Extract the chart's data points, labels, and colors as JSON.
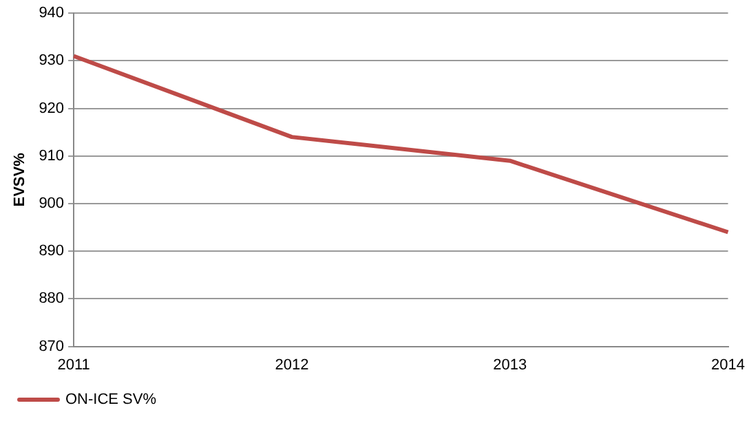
{
  "chart_data": {
    "type": "line",
    "ylabel": "EVSV%",
    "categories": [
      "2011",
      "2012",
      "2013",
      "2014"
    ],
    "series": [
      {
        "name": "ON-ICE SV%",
        "color": "#be4b48",
        "values": [
          931,
          914,
          909,
          894
        ]
      }
    ],
    "ylim": [
      870,
      940
    ],
    "yticks": [
      870,
      880,
      890,
      900,
      910,
      920,
      930,
      940
    ],
    "grid": "y",
    "legend": "bottom",
    "marker": "none",
    "line_style": "solid"
  }
}
